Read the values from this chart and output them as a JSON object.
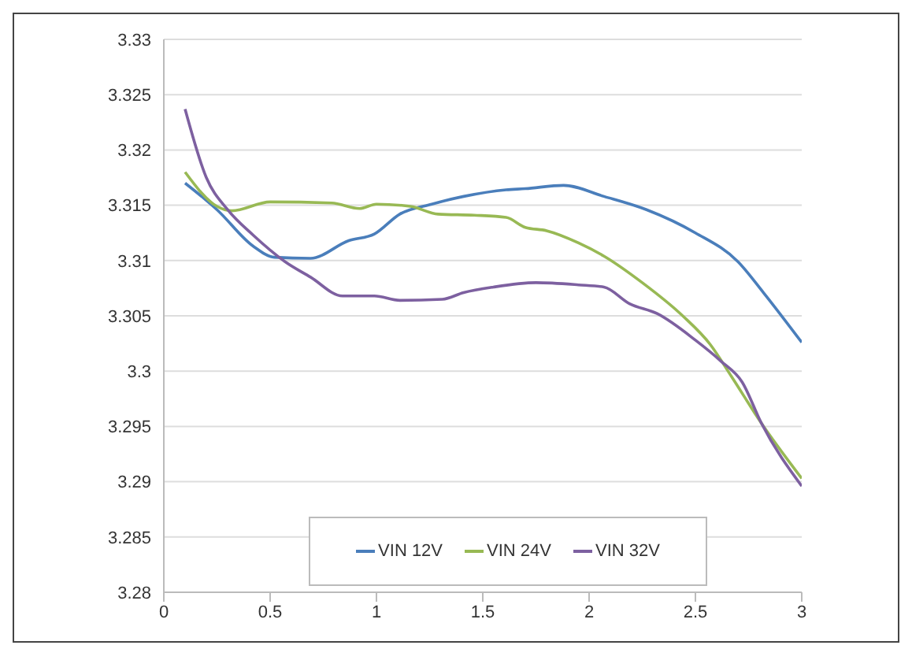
{
  "chart_data": {
    "type": "line",
    "xlim": [
      0,
      3
    ],
    "xticks": [
      0,
      0.5,
      1,
      1.5,
      2,
      2.5,
      3
    ],
    "ylim": [
      3.28,
      3.33
    ],
    "yticks": [
      3.28,
      3.285,
      3.29,
      3.295,
      3.3,
      3.305,
      3.31,
      3.315,
      3.32,
      3.325,
      3.33
    ],
    "grid": "y",
    "legend": "bottom",
    "marker": "none",
    "line_style": "solid",
    "series": [
      {
        "name": "VIN 12V",
        "color": "#4a7ebb",
        "x": [
          0.1,
          0.25,
          0.42,
          0.52,
          0.69,
          0.87,
          0.99,
          1.11,
          1.26,
          1.41,
          1.61,
          1.7,
          1.88,
          2.07,
          2.27,
          2.5,
          2.7,
          2.82,
          3.0
        ],
        "values": [
          3.317,
          3.3146,
          3.3113,
          3.3103,
          3.3102,
          3.3118,
          3.3124,
          3.3142,
          3.3151,
          3.3158,
          3.3164,
          3.3165,
          3.3168,
          3.3158,
          3.3146,
          3.3125,
          3.3099,
          3.3071,
          3.3026
        ]
      },
      {
        "name": "VIN 24V",
        "color": "#98b954",
        "x": [
          0.1,
          0.25,
          0.32,
          0.5,
          0.79,
          0.92,
          1.0,
          1.16,
          1.29,
          1.46,
          1.61,
          1.7,
          1.8,
          1.95,
          2.07,
          2.25,
          2.44,
          2.57,
          2.67,
          2.81,
          3.0
        ],
        "values": [
          3.318,
          3.3149,
          3.3145,
          3.3153,
          3.3152,
          3.3147,
          3.3151,
          3.3149,
          3.3142,
          3.3141,
          3.3139,
          3.313,
          3.3127,
          3.3116,
          3.3104,
          3.308,
          3.305,
          3.3024,
          3.2995,
          3.2953,
          3.2903
        ]
      },
      {
        "name": "VIN 32V",
        "color": "#7d60a0",
        "x": [
          0.1,
          0.2,
          0.3,
          0.42,
          0.57,
          0.69,
          0.84,
          0.99,
          1.11,
          1.31,
          1.41,
          1.55,
          1.75,
          1.95,
          2.07,
          2.19,
          2.32,
          2.5,
          2.62,
          2.72,
          2.81,
          3.0
        ],
        "values": [
          3.3237,
          3.3175,
          3.3146,
          3.3123,
          3.3099,
          3.3085,
          3.3068,
          3.3068,
          3.3064,
          3.3065,
          3.3071,
          3.3076,
          3.308,
          3.3078,
          3.3076,
          3.3061,
          3.3052,
          3.3028,
          3.3009,
          3.299,
          3.2953,
          3.2896
        ]
      }
    ]
  }
}
